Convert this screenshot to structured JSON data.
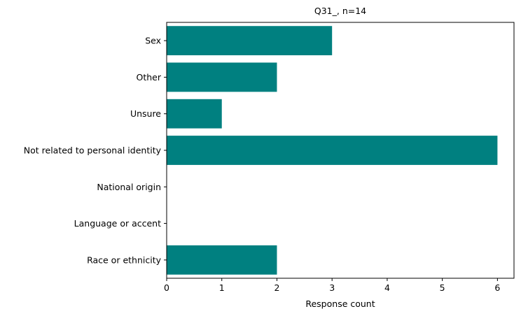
{
  "chart_data": {
    "type": "bar",
    "orientation": "horizontal",
    "title": "Q31_, n=14",
    "xlabel": "Response count",
    "ylabel": "",
    "categories": [
      "Sex",
      "Other",
      "Unsure",
      "Not related to personal identity",
      "National origin",
      "Language or accent",
      "Race or ethnicity"
    ],
    "values": [
      3,
      2,
      1,
      6,
      0,
      0,
      2
    ],
    "xlim": [
      0,
      6.3
    ],
    "xticks": [
      "0",
      "1",
      "2",
      "3",
      "4",
      "5",
      "6"
    ],
    "grid": false,
    "bar_color": "#008080"
  }
}
